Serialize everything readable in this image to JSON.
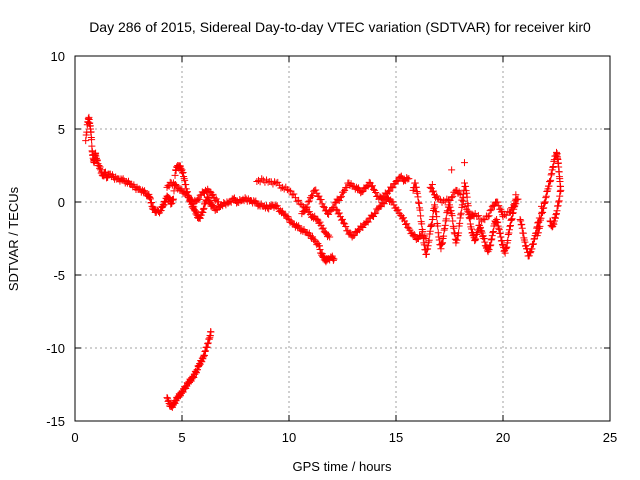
{
  "chart_data": {
    "type": "scatter",
    "title": "Day 286 of 2015, Sidereal Day-to-day VTEC variation (SDTVAR) for receiver kir0",
    "xlabel": "GPS time / hours",
    "ylabel": "SDTVAR / TECUs",
    "xlim": [
      0,
      25
    ],
    "ylim": [
      -15,
      10
    ],
    "xticks": [
      0,
      5,
      10,
      15,
      20,
      25
    ],
    "yticks": [
      -15,
      -10,
      -5,
      0,
      5,
      10
    ],
    "xtick_labels": [
      "0",
      "5",
      "10",
      "15",
      "20",
      "25"
    ],
    "ytick_labels": [
      "-15",
      "-10",
      "-5",
      "0",
      "5",
      "10"
    ],
    "grid": true,
    "marker": "+",
    "color": "#ff0000",
    "series": [
      {
        "name": "main",
        "values": [
          [
            0.5,
            4.2
          ],
          [
            0.6,
            5.5
          ],
          [
            0.65,
            5.8
          ],
          [
            0.7,
            5.2
          ],
          [
            0.75,
            4.8
          ],
          [
            0.8,
            3.5
          ],
          [
            0.85,
            3.0
          ],
          [
            0.9,
            2.7
          ],
          [
            0.95,
            3.3
          ],
          [
            1.0,
            3.0
          ],
          [
            1.1,
            2.5
          ],
          [
            1.2,
            2.2
          ],
          [
            1.3,
            1.8
          ],
          [
            1.4,
            2.0
          ],
          [
            1.5,
            1.7
          ],
          [
            1.6,
            1.9
          ],
          [
            1.8,
            1.7
          ],
          [
            2.0,
            1.6
          ],
          [
            2.2,
            1.5
          ],
          [
            2.4,
            1.4
          ],
          [
            2.6,
            1.2
          ],
          [
            2.8,
            1.0
          ],
          [
            3.0,
            0.9
          ],
          [
            3.2,
            0.7
          ],
          [
            3.4,
            0.5
          ],
          [
            3.5,
            0.3
          ],
          [
            3.6,
            -0.3
          ],
          [
            3.7,
            -0.5
          ],
          [
            3.8,
            -0.7
          ],
          [
            4.0,
            -0.6
          ],
          [
            4.1,
            -0.3
          ],
          [
            4.2,
            0.0
          ],
          [
            4.3,
            0.4
          ],
          [
            4.4,
            0.2
          ],
          [
            4.5,
            -0.1
          ],
          [
            4.6,
            0.2
          ],
          [
            4.7,
            2.2
          ],
          [
            4.8,
            2.5
          ],
          [
            4.9,
            2.4
          ],
          [
            5.0,
            2.2
          ],
          [
            5.1,
            1.6
          ],
          [
            5.2,
            0.9
          ],
          [
            5.3,
            0.4
          ],
          [
            5.4,
            0.0
          ],
          [
            5.5,
            -0.3
          ],
          [
            5.6,
            -0.6
          ],
          [
            5.7,
            -0.9
          ],
          [
            5.8,
            -1.1
          ],
          [
            5.9,
            -0.9
          ],
          [
            6.0,
            -0.5
          ],
          [
            6.1,
            0.0
          ],
          [
            6.2,
            0.3
          ],
          [
            6.3,
            0.0
          ],
          [
            6.4,
            -0.3
          ],
          [
            6.6,
            -0.5
          ],
          [
            6.8,
            -0.3
          ],
          [
            7.0,
            -0.1
          ],
          [
            7.2,
            0.0
          ],
          [
            7.4,
            0.2
          ],
          [
            7.6,
            0.0
          ],
          [
            7.8,
            0.1
          ],
          [
            8.0,
            0.2
          ],
          [
            8.2,
            0.1
          ],
          [
            8.4,
            0.0
          ],
          [
            8.6,
            -0.2
          ],
          [
            8.8,
            -0.3
          ],
          [
            9.0,
            -0.4
          ],
          [
            9.2,
            -0.2
          ],
          [
            9.4,
            -0.3
          ],
          [
            9.6,
            -0.6
          ],
          [
            9.8,
            -0.9
          ],
          [
            10.0,
            -1.2
          ],
          [
            10.2,
            -1.5
          ],
          [
            10.4,
            -1.7
          ],
          [
            10.6,
            -1.9
          ],
          [
            10.8,
            -2.1
          ],
          [
            11.0,
            -2.3
          ],
          [
            11.2,
            -2.6
          ],
          [
            11.4,
            -3.0
          ],
          [
            11.5,
            -3.5
          ],
          [
            11.6,
            -3.8
          ],
          [
            11.7,
            -4.0
          ],
          [
            11.8,
            -3.9
          ],
          [
            12.0,
            -3.8
          ],
          [
            12.1,
            -3.9
          ]
        ]
      },
      {
        "name": "branch-a",
        "values": [
          [
            4.3,
            1.0
          ],
          [
            4.5,
            1.3
          ],
          [
            4.7,
            1.2
          ],
          [
            4.9,
            0.8
          ],
          [
            5.1,
            0.7
          ],
          [
            5.3,
            0.3
          ],
          [
            5.5,
            0.0
          ],
          [
            5.7,
            0.1
          ],
          [
            5.9,
            0.5
          ],
          [
            6.1,
            0.8
          ],
          [
            6.3,
            0.7
          ],
          [
            6.5,
            0.3
          ],
          [
            6.7,
            0.0
          ]
        ]
      },
      {
        "name": "branch-b",
        "values": [
          [
            8.5,
            1.4
          ],
          [
            8.8,
            1.5
          ],
          [
            9.1,
            1.4
          ],
          [
            9.4,
            1.3
          ],
          [
            9.7,
            1.0
          ],
          [
            10.0,
            0.8
          ],
          [
            10.3,
            0.3
          ],
          [
            10.6,
            -0.2
          ],
          [
            10.9,
            -0.7
          ],
          [
            11.1,
            -1.0
          ],
          [
            11.3,
            -1.2
          ],
          [
            11.5,
            -1.6
          ],
          [
            11.7,
            -2.1
          ],
          [
            11.9,
            -2.4
          ]
        ]
      },
      {
        "name": "segment-1",
        "values": [
          [
            10.6,
            -0.8
          ],
          [
            10.8,
            -0.4
          ],
          [
            11.0,
            0.3
          ],
          [
            11.2,
            0.8
          ],
          [
            11.4,
            0.4
          ],
          [
            11.6,
            -0.3
          ],
          [
            11.8,
            -0.8
          ],
          [
            12.0,
            -0.5
          ],
          [
            12.2,
            0.0
          ],
          [
            12.4,
            0.3
          ],
          [
            12.6,
            0.8
          ],
          [
            12.8,
            1.3
          ],
          [
            13.0,
            1.1
          ],
          [
            13.2,
            0.9
          ],
          [
            13.4,
            0.7
          ],
          [
            13.6,
            1.0
          ],
          [
            13.8,
            1.3
          ],
          [
            14.0,
            0.8
          ],
          [
            14.2,
            0.2
          ],
          [
            14.4,
            0.4
          ],
          [
            14.6,
            0.6
          ],
          [
            14.8,
            1.0
          ],
          [
            15.0,
            1.4
          ],
          [
            15.2,
            1.7
          ],
          [
            15.4,
            1.5
          ],
          [
            15.6,
            1.6
          ]
        ]
      },
      {
        "name": "segment-2",
        "values": [
          [
            12.2,
            -0.5
          ],
          [
            12.4,
            -1.0
          ],
          [
            12.6,
            -1.5
          ],
          [
            12.8,
            -2.2
          ],
          [
            13.0,
            -2.3
          ],
          [
            13.2,
            -2.0
          ],
          [
            13.4,
            -1.7
          ],
          [
            13.6,
            -1.4
          ],
          [
            13.8,
            -1.1
          ],
          [
            14.0,
            -0.8
          ],
          [
            14.2,
            -0.4
          ],
          [
            14.4,
            -0.1
          ],
          [
            14.6,
            0.3
          ],
          [
            14.8,
            0.0
          ],
          [
            15.0,
            -0.4
          ],
          [
            15.2,
            -0.9
          ],
          [
            15.4,
            -1.3
          ],
          [
            15.6,
            -1.8
          ],
          [
            15.8,
            -2.3
          ],
          [
            16.0,
            -2.5
          ],
          [
            16.2,
            -2.3
          ],
          [
            16.4,
            -2.5
          ]
        ]
      },
      {
        "name": "segment-3",
        "values": [
          [
            15.8,
            0.8
          ],
          [
            15.9,
            1.3
          ],
          [
            16.0,
            0.6
          ],
          [
            16.1,
            -0.4
          ],
          [
            16.2,
            -1.5
          ],
          [
            16.3,
            -2.8
          ],
          [
            16.4,
            -3.6
          ],
          [
            16.5,
            -3.0
          ],
          [
            16.6,
            -2.0
          ],
          [
            16.7,
            -1.2
          ],
          [
            16.8,
            -0.2
          ],
          [
            16.9,
            -1.0
          ],
          [
            17.0,
            -2.4
          ],
          [
            17.1,
            -3.2
          ],
          [
            17.2,
            -2.5
          ],
          [
            17.3,
            -1.6
          ],
          [
            17.4,
            -0.6
          ],
          [
            17.5,
            -0.2
          ],
          [
            17.6,
            -0.8
          ],
          [
            17.7,
            -1.8
          ],
          [
            17.8,
            -2.8
          ],
          [
            17.9,
            -2.3
          ],
          [
            18.0,
            -1.1
          ],
          [
            18.1,
            -0.2
          ],
          [
            18.2,
            1.3
          ],
          [
            18.3,
            0.6
          ],
          [
            18.4,
            -0.7
          ],
          [
            18.5,
            -1.7
          ],
          [
            18.6,
            -2.3
          ],
          [
            18.7,
            -2.6
          ],
          [
            18.8,
            -2.1
          ],
          [
            18.9,
            -1.6
          ],
          [
            19.0,
            -2.0
          ],
          [
            19.1,
            -2.5
          ],
          [
            19.2,
            -3.0
          ],
          [
            19.3,
            -3.4
          ],
          [
            19.4,
            -3.0
          ],
          [
            19.5,
            -2.3
          ],
          [
            19.6,
            -1.5
          ],
          [
            19.7,
            -1.2
          ],
          [
            19.8,
            -1.8
          ],
          [
            19.9,
            -2.4
          ],
          [
            20.0,
            -3.0
          ],
          [
            20.1,
            -3.5
          ],
          [
            20.2,
            -2.8
          ],
          [
            20.3,
            -1.9
          ],
          [
            20.4,
            -1.2
          ],
          [
            20.5,
            -0.5
          ],
          [
            20.6,
            0.2
          ]
        ]
      },
      {
        "name": "segment-4",
        "values": [
          [
            16.6,
            1.0
          ],
          [
            16.8,
            0.5
          ],
          [
            17.0,
            0.2
          ],
          [
            17.3,
            0.0
          ],
          [
            17.6,
            0.3
          ],
          [
            17.8,
            0.8
          ],
          [
            18.0,
            0.5
          ],
          [
            18.3,
            -0.5
          ],
          [
            18.5,
            -1.0
          ],
          [
            18.7,
            -0.8
          ],
          [
            19.0,
            -1.3
          ],
          [
            19.3,
            -1.0
          ],
          [
            19.5,
            -0.3
          ],
          [
            19.7,
            0.0
          ],
          [
            19.9,
            -0.5
          ],
          [
            20.0,
            -1.0
          ],
          [
            20.3,
            -0.7
          ],
          [
            20.5,
            -0.2
          ],
          [
            20.7,
            0.2
          ]
        ]
      },
      {
        "name": "segment-5",
        "values": [
          [
            20.8,
            -1.2
          ],
          [
            20.9,
            -1.8
          ],
          [
            21.0,
            -2.6
          ],
          [
            21.1,
            -3.2
          ],
          [
            21.2,
            -3.7
          ],
          [
            21.3,
            -3.4
          ],
          [
            21.4,
            -2.9
          ],
          [
            21.5,
            -2.3
          ],
          [
            21.6,
            -1.7
          ],
          [
            21.7,
            -1.1
          ]
        ]
      },
      {
        "name": "segment-6",
        "values": [
          [
            21.6,
            -2.3
          ],
          [
            21.7,
            -1.8
          ],
          [
            21.8,
            -0.8
          ],
          [
            21.9,
            -0.4
          ],
          [
            22.0,
            0.3
          ],
          [
            22.1,
            0.9
          ],
          [
            22.2,
            1.4
          ],
          [
            22.3,
            2.2
          ],
          [
            22.4,
            2.9
          ],
          [
            22.5,
            3.4
          ],
          [
            22.55,
            3.0
          ],
          [
            22.6,
            2.4
          ],
          [
            22.65,
            1.6
          ],
          [
            22.7,
            0.8
          ],
          [
            22.6,
            0.0
          ],
          [
            22.5,
            -0.8
          ],
          [
            22.4,
            -1.3
          ],
          [
            22.3,
            -1.7
          ],
          [
            22.2,
            -1.3
          ]
        ]
      },
      {
        "name": "outliers",
        "values": [
          [
            18.2,
            2.7
          ],
          [
            17.6,
            2.2
          ],
          [
            16.7,
            1.2
          ],
          [
            20.6,
            0.5
          ],
          [
            21.8,
            -0.3
          ]
        ]
      },
      {
        "name": "lower-segment",
        "values": [
          [
            4.3,
            -13.4
          ],
          [
            4.4,
            -13.8
          ],
          [
            4.5,
            -14.0
          ],
          [
            4.6,
            -13.9
          ],
          [
            4.7,
            -13.6
          ],
          [
            4.8,
            -13.4
          ],
          [
            4.9,
            -13.2
          ],
          [
            5.0,
            -13.0
          ],
          [
            5.1,
            -12.8
          ],
          [
            5.2,
            -12.6
          ],
          [
            5.3,
            -12.4
          ],
          [
            5.4,
            -12.2
          ],
          [
            5.5,
            -12.0
          ],
          [
            5.6,
            -11.8
          ],
          [
            5.7,
            -11.5
          ],
          [
            5.8,
            -11.2
          ],
          [
            5.9,
            -10.9
          ],
          [
            6.0,
            -10.6
          ],
          [
            6.1,
            -10.2
          ],
          [
            6.2,
            -9.7
          ],
          [
            6.3,
            -9.3
          ],
          [
            6.35,
            -8.9
          ]
        ]
      }
    ]
  }
}
